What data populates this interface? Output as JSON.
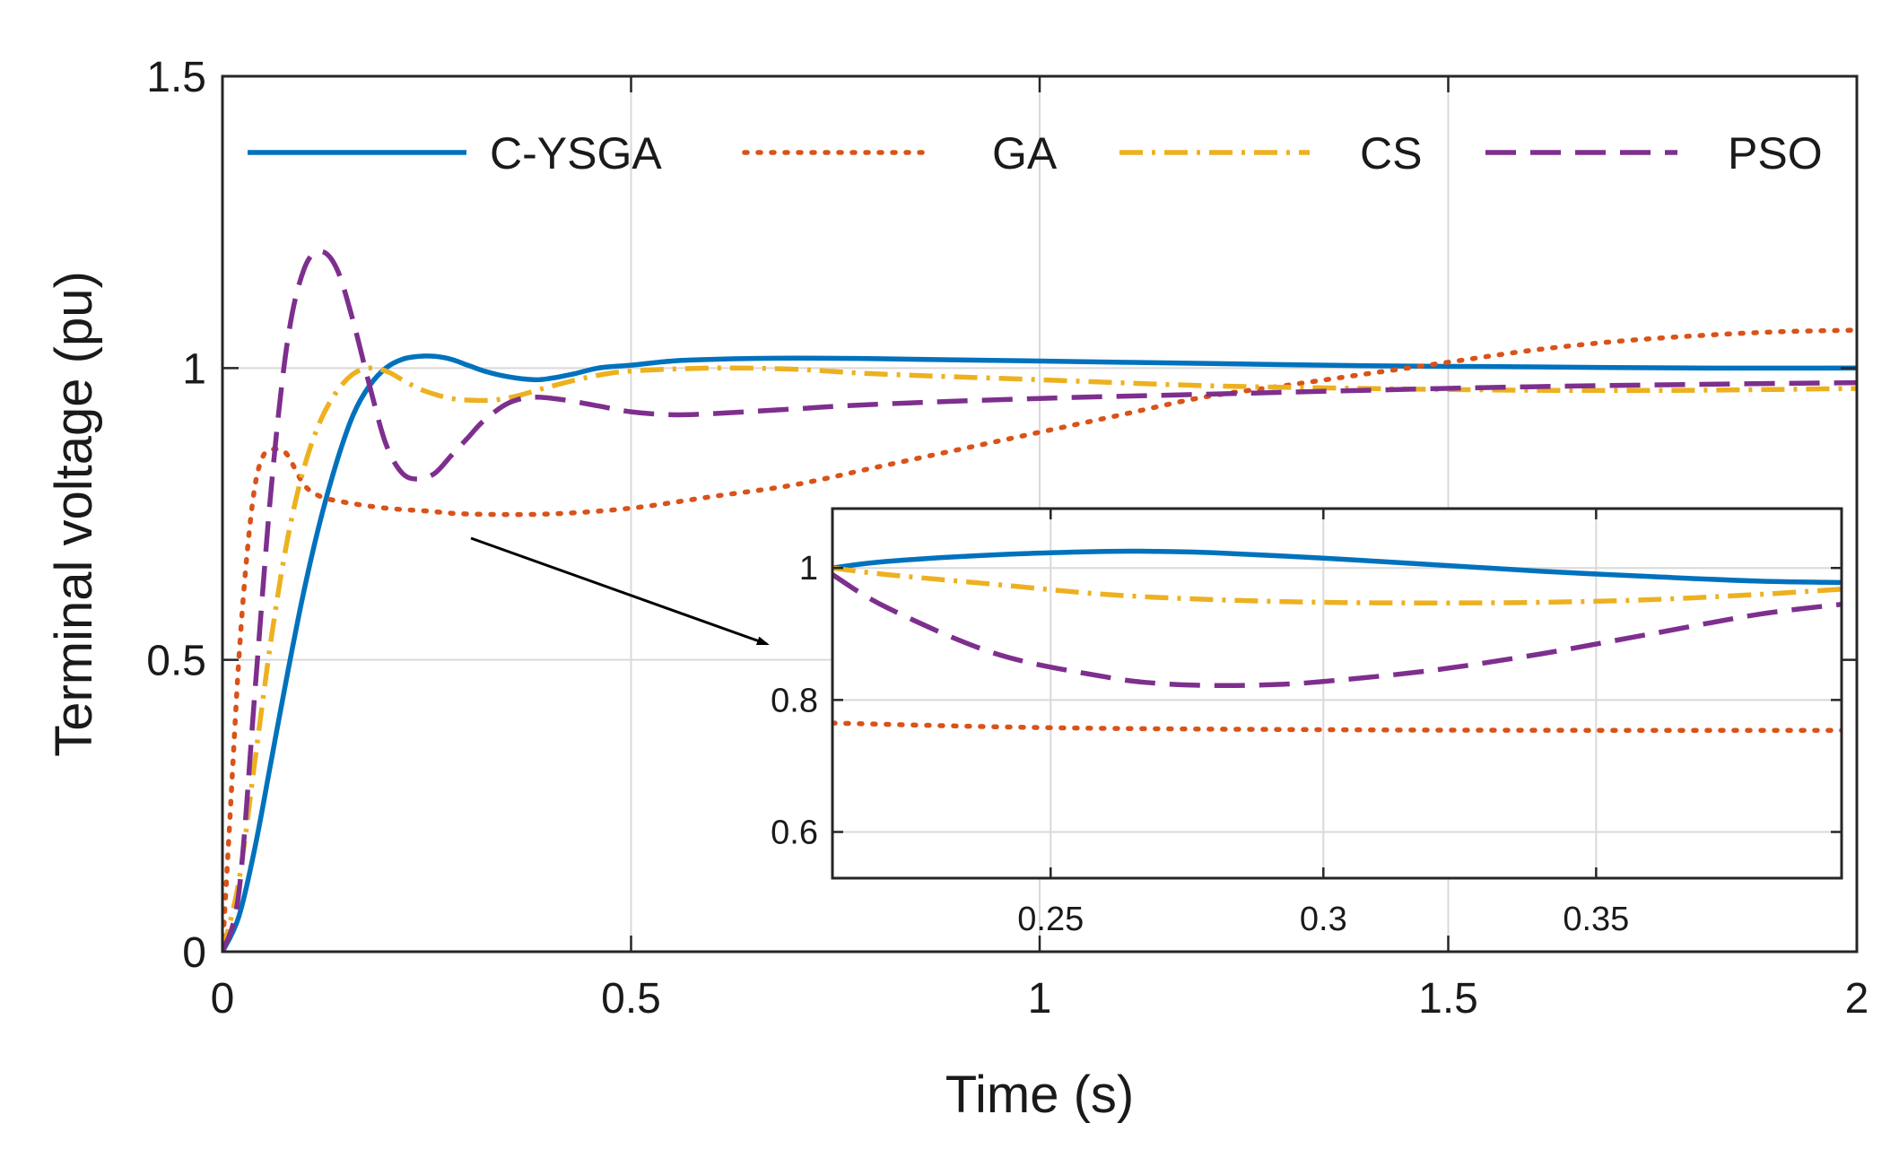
{
  "chart_data": [
    {
      "type": "line",
      "title": "",
      "xlabel": "Time (s)",
      "ylabel": "Terminal voltage (pu)",
      "xlim": [
        0,
        2
      ],
      "ylim": [
        0,
        1.5
      ],
      "xticks": [
        0,
        0.5,
        1,
        1.5,
        2
      ],
      "yticks": [
        0,
        0.5,
        1,
        1.5
      ],
      "xtick_labels": [
        "0",
        "0.5",
        "1",
        "1.5",
        "2"
      ],
      "ytick_labels": [
        "0",
        "0.5",
        "1",
        "1.5"
      ],
      "grid": true,
      "legend": {
        "placement": "top",
        "orientation": "horizontal",
        "entries": [
          "C-YSGA",
          "GA",
          "CS",
          "PSO"
        ]
      },
      "series": [
        {
          "name": "C-YSGA",
          "color": "#0072bd",
          "style": "solid",
          "x": [
            0,
            0.02,
            0.04,
            0.06,
            0.08,
            0.1,
            0.12,
            0.14,
            0.16,
            0.18,
            0.2,
            0.22,
            0.24,
            0.26,
            0.28,
            0.3,
            0.32,
            0.35,
            0.38,
            0.4,
            0.43,
            0.46,
            0.5,
            0.55,
            0.6,
            0.7,
            0.8,
            1.0,
            1.2,
            1.4,
            1.6,
            1.8,
            2.0
          ],
          "values": [
            0,
            0.06,
            0.18,
            0.33,
            0.48,
            0.62,
            0.74,
            0.84,
            0.92,
            0.97,
            1.0,
            1.015,
            1.02,
            1.02,
            1.015,
            1.005,
            0.995,
            0.985,
            0.98,
            0.982,
            0.99,
            1.0,
            1.005,
            1.012,
            1.015,
            1.017,
            1.016,
            1.012,
            1.008,
            1.004,
            1.002,
            1.0,
            1.0
          ]
        },
        {
          "name": "GA",
          "color": "#d95319",
          "style": "dotted",
          "x": [
            0,
            0.01,
            0.02,
            0.03,
            0.04,
            0.05,
            0.06,
            0.07,
            0.08,
            0.1,
            0.12,
            0.15,
            0.2,
            0.25,
            0.3,
            0.4,
            0.5,
            0.6,
            0.7,
            0.8,
            0.9,
            1.0,
            1.1,
            1.2,
            1.3,
            1.4,
            1.5,
            1.6,
            1.7,
            1.8,
            1.9,
            2.0
          ],
          "values": [
            0,
            0.25,
            0.5,
            0.68,
            0.8,
            0.85,
            0.86,
            0.86,
            0.85,
            0.8,
            0.78,
            0.77,
            0.76,
            0.755,
            0.75,
            0.75,
            0.76,
            0.78,
            0.8,
            0.83,
            0.86,
            0.89,
            0.92,
            0.95,
            0.97,
            0.99,
            1.01,
            1.03,
            1.045,
            1.055,
            1.062,
            1.065
          ]
        },
        {
          "name": "CS",
          "color": "#edb120",
          "style": "dashdot",
          "x": [
            0,
            0.02,
            0.04,
            0.06,
            0.08,
            0.1,
            0.12,
            0.14,
            0.16,
            0.18,
            0.2,
            0.22,
            0.24,
            0.26,
            0.28,
            0.3,
            0.33,
            0.36,
            0.4,
            0.45,
            0.5,
            0.6,
            0.7,
            0.8,
            1.0,
            1.2,
            1.4,
            1.6,
            1.8,
            2.0
          ],
          "values": [
            0,
            0.12,
            0.33,
            0.54,
            0.71,
            0.83,
            0.91,
            0.96,
            0.99,
            1.0,
            0.995,
            0.98,
            0.965,
            0.955,
            0.948,
            0.945,
            0.945,
            0.952,
            0.968,
            0.985,
            0.995,
            1.0,
            0.998,
            0.99,
            0.98,
            0.97,
            0.965,
            0.962,
            0.962,
            0.965
          ]
        },
        {
          "name": "PSO",
          "color": "#7e2f8e",
          "style": "dashed",
          "x": [
            0,
            0.02,
            0.04,
            0.06,
            0.08,
            0.1,
            0.12,
            0.14,
            0.16,
            0.18,
            0.2,
            0.22,
            0.24,
            0.26,
            0.28,
            0.3,
            0.32,
            0.35,
            0.38,
            0.42,
            0.46,
            0.5,
            0.55,
            0.6,
            0.7,
            0.8,
            1.0,
            1.2,
            1.4,
            1.6,
            1.8,
            2.0
          ],
          "values": [
            0,
            0.1,
            0.45,
            0.8,
            1.05,
            1.17,
            1.2,
            1.17,
            1.08,
            0.97,
            0.87,
            0.82,
            0.81,
            0.82,
            0.85,
            0.88,
            0.91,
            0.94,
            0.95,
            0.945,
            0.935,
            0.925,
            0.92,
            0.922,
            0.93,
            0.938,
            0.948,
            0.955,
            0.962,
            0.968,
            0.972,
            0.975
          ]
        }
      ]
    },
    {
      "type": "line",
      "title": "",
      "xlabel": "",
      "ylabel": "",
      "xlim": [
        0.21,
        0.395
      ],
      "ylim": [
        0.53,
        1.09
      ],
      "xticks": [
        0.25,
        0.3,
        0.35
      ],
      "yticks": [
        0.6,
        0.8,
        1
      ],
      "xtick_labels": [
        "0.25",
        "0.3",
        "0.35"
      ],
      "ytick_labels": [
        "0.6",
        "0.8",
        "1"
      ],
      "grid": true,
      "annotation": "arrow pointing from main plot near t = 0.3 s to the zoomed inset",
      "series": [
        {
          "name": "C-YSGA",
          "color": "#0072bd",
          "style": "solid",
          "x": [
            0.21,
            0.22,
            0.24,
            0.26,
            0.27,
            0.28,
            0.3,
            0.32,
            0.34,
            0.36,
            0.38,
            0.395
          ],
          "values": [
            1.0,
            1.01,
            1.02,
            1.025,
            1.025,
            1.023,
            1.015,
            1.005,
            0.995,
            0.987,
            0.98,
            0.978
          ]
        },
        {
          "name": "GA",
          "color": "#d95319",
          "style": "dotted",
          "x": [
            0.21,
            0.25,
            0.3,
            0.35,
            0.395
          ],
          "values": [
            0.765,
            0.758,
            0.755,
            0.754,
            0.754
          ]
        },
        {
          "name": "CS",
          "color": "#edb120",
          "style": "dashdot",
          "x": [
            0.21,
            0.22,
            0.24,
            0.26,
            0.28,
            0.3,
            0.32,
            0.34,
            0.36,
            0.38,
            0.395
          ],
          "values": [
            1.0,
            0.99,
            0.975,
            0.96,
            0.952,
            0.948,
            0.947,
            0.948,
            0.952,
            0.96,
            0.968
          ]
        },
        {
          "name": "PSO",
          "color": "#7e2f8e",
          "style": "dashed",
          "x": [
            0.21,
            0.22,
            0.24,
            0.26,
            0.27,
            0.28,
            0.29,
            0.3,
            0.32,
            0.34,
            0.36,
            0.38,
            0.395
          ],
          "values": [
            0.99,
            0.94,
            0.87,
            0.835,
            0.825,
            0.822,
            0.823,
            0.828,
            0.845,
            0.87,
            0.9,
            0.93,
            0.945
          ]
        }
      ]
    }
  ]
}
